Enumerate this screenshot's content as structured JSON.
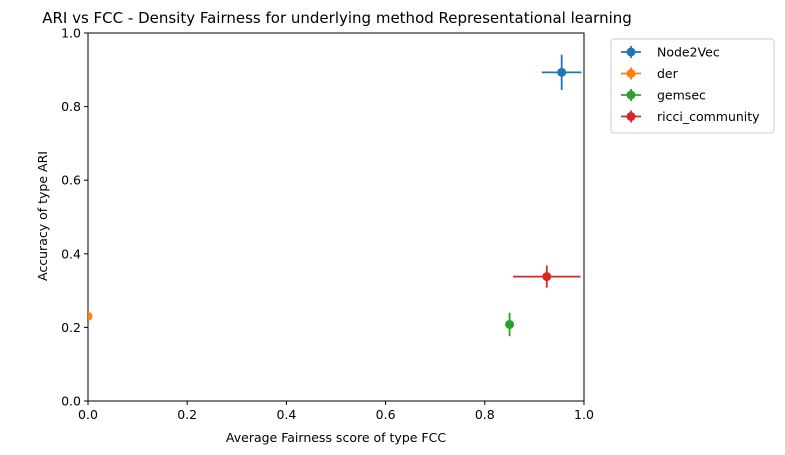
{
  "chart_data": {
    "type": "scatter",
    "title": "ARI vs FCC - Density Fairness for underlying method Representational learning",
    "xlabel": "Average Fairness score of type FCC",
    "ylabel": "Accuracy of type ARI",
    "xlim": [
      0,
      1
    ],
    "ylim": [
      0,
      1
    ],
    "xticks": [
      "0.0",
      "0.2",
      "0.4",
      "0.6",
      "0.8",
      "1.0"
    ],
    "yticks": [
      "0.0",
      "0.2",
      "0.4",
      "0.6",
      "0.8",
      "1.0"
    ],
    "grid": false,
    "legend_position": "outside-top-right",
    "series": [
      {
        "name": "Node2Vec",
        "color": "#1f77b4",
        "x": 0.955,
        "y": 0.893,
        "xerr": 0.04,
        "yerr": 0.048
      },
      {
        "name": "der",
        "color": "#ff7f0e",
        "x": 0.0,
        "y": 0.23,
        "xerr": 0.0,
        "yerr": 0.0
      },
      {
        "name": "gemsec",
        "color": "#2ca02c",
        "x": 0.85,
        "y": 0.208,
        "xerr": 0.0,
        "yerr": 0.032
      },
      {
        "name": "ricci_community",
        "color": "#d62728",
        "x": 0.925,
        "y": 0.338,
        "xerr": 0.068,
        "yerr": 0.03
      }
    ]
  }
}
